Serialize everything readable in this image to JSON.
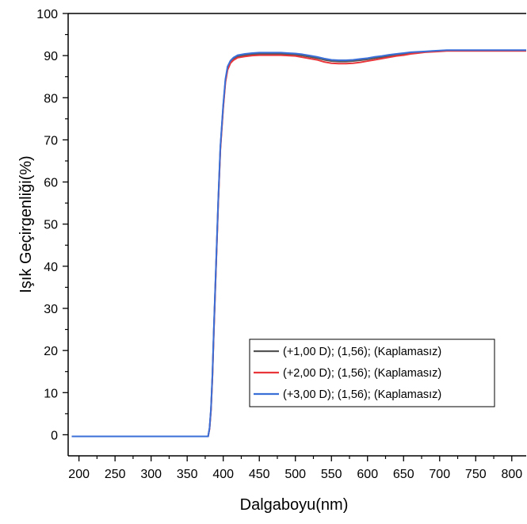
{
  "chart_data": {
    "type": "line",
    "xlabel": "Dalgaboyu(nm)",
    "ylabel": "Işık Geçirgenliği(%)",
    "xlim": [
      185,
      820
    ],
    "ylim": [
      -5,
      100
    ],
    "x_ticks": [
      "200",
      "250",
      "300",
      "350",
      "400",
      "450",
      "500",
      "550",
      "600",
      "650",
      "700",
      "750",
      "800"
    ],
    "y_ticks": [
      "0",
      "10",
      "20",
      "30",
      "40",
      "50",
      "60",
      "70",
      "80",
      "90",
      "100"
    ],
    "legend_position": "lower-right",
    "grid": false,
    "colors": {
      "axis": "#000000"
    },
    "series": [
      {
        "name": "(+1,00 D); (1,56); (Kaplamasız)",
        "color": "#555555",
        "x": [
          190,
          300,
          370,
          379,
          381,
          383,
          385,
          387,
          390,
          393,
          396,
          400,
          403,
          406,
          410,
          414,
          420,
          430,
          440,
          450,
          460,
          470,
          480,
          490,
          500,
          510,
          520,
          530,
          540,
          550,
          560,
          570,
          580,
          590,
          600,
          610,
          620,
          630,
          640,
          650,
          660,
          670,
          680,
          690,
          700,
          710,
          720,
          740,
          760,
          780,
          800,
          820
        ],
        "y": [
          -0.4,
          -0.4,
          -0.4,
          -0.4,
          1.5,
          6,
          14,
          25,
          40,
          55,
          68,
          78,
          84,
          87,
          88.5,
          89.2,
          89.8,
          90.1,
          90.3,
          90.4,
          90.4,
          90.4,
          90.4,
          90.3,
          90.2,
          90,
          89.7,
          89.4,
          89,
          88.7,
          88.6,
          88.6,
          88.7,
          88.9,
          89.1,
          89.4,
          89.6,
          89.9,
          90.1,
          90.3,
          90.5,
          90.7,
          90.9,
          91,
          91.1,
          91.2,
          91.2,
          91.2,
          91.2,
          91.2,
          91.2,
          91.2
        ]
      },
      {
        "name": "(+2,00 D); (1,56); (Kaplamasız)",
        "color": "#e8363a",
        "x": [
          190,
          300,
          370,
          379,
          381,
          383,
          385,
          387,
          390,
          393,
          396,
          400,
          403,
          406,
          410,
          414,
          420,
          430,
          440,
          450,
          460,
          470,
          480,
          490,
          500,
          510,
          520,
          530,
          540,
          550,
          560,
          570,
          580,
          590,
          600,
          610,
          620,
          630,
          640,
          650,
          660,
          670,
          680,
          690,
          700,
          710,
          720,
          740,
          760,
          780,
          800,
          820
        ],
        "y": [
          -0.4,
          -0.4,
          -0.4,
          -0.4,
          1.4,
          5.8,
          13.7,
          24.6,
          39.6,
          54.6,
          67.6,
          77.6,
          83.6,
          86.6,
          88.2,
          88.9,
          89.5,
          89.8,
          90,
          90.1,
          90.1,
          90.1,
          90.1,
          90,
          89.9,
          89.6,
          89.3,
          89,
          88.5,
          88.2,
          88.1,
          88.1,
          88.2,
          88.4,
          88.7,
          89,
          89.3,
          89.6,
          89.9,
          90.1,
          90.4,
          90.6,
          90.8,
          90.9,
          91,
          91.1,
          91.1,
          91.1,
          91.1,
          91.1,
          91.1,
          91.1
        ]
      },
      {
        "name": "(+3,00 D); (1,56); (Kaplamasız)",
        "color": "#3a6fd8",
        "x": [
          190,
          300,
          370,
          379,
          381,
          383,
          385,
          387,
          390,
          393,
          396,
          400,
          403,
          406,
          410,
          414,
          420,
          430,
          440,
          450,
          460,
          470,
          480,
          490,
          500,
          510,
          520,
          530,
          540,
          550,
          560,
          570,
          580,
          590,
          600,
          610,
          620,
          630,
          640,
          650,
          660,
          670,
          680,
          690,
          700,
          710,
          720,
          740,
          760,
          780,
          800,
          820
        ],
        "y": [
          -0.4,
          -0.4,
          -0.4,
          -0.4,
          1.6,
          6.2,
          14.3,
          25.4,
          40.4,
          55.4,
          68.4,
          78.4,
          84.4,
          87.4,
          88.8,
          89.5,
          90.1,
          90.4,
          90.6,
          90.7,
          90.7,
          90.7,
          90.7,
          90.6,
          90.5,
          90.3,
          90,
          89.7,
          89.3,
          89,
          88.9,
          88.9,
          89,
          89.2,
          89.4,
          89.7,
          89.9,
          90.2,
          90.4,
          90.6,
          90.8,
          90.9,
          91,
          91.1,
          91.2,
          91.3,
          91.3,
          91.3,
          91.3,
          91.3,
          91.3,
          91.3
        ]
      }
    ]
  }
}
